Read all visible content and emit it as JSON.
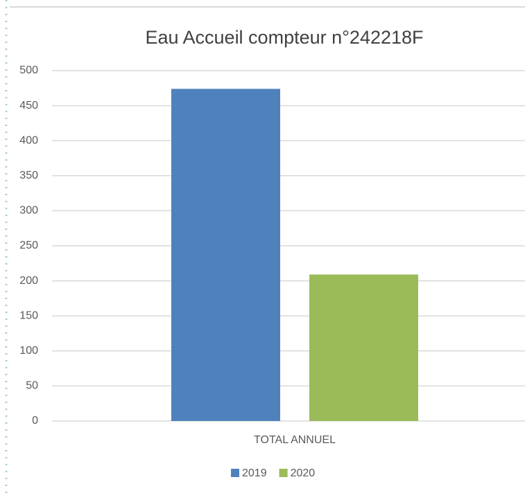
{
  "chart_data": {
    "type": "bar",
    "title": "Eau Accueil compteur n°242218F",
    "categories": [
      "TOTAL ANNUEL"
    ],
    "series": [
      {
        "name": "2019",
        "color": "#4f81bd",
        "values": [
          474
        ]
      },
      {
        "name": "2020",
        "color": "#9bbb59",
        "values": [
          209
        ]
      }
    ],
    "ylim": [
      0,
      500
    ],
    "yticks": [
      0,
      50,
      100,
      150,
      200,
      250,
      300,
      350,
      400,
      450,
      500
    ],
    "grid": true,
    "legend": "bottom"
  }
}
